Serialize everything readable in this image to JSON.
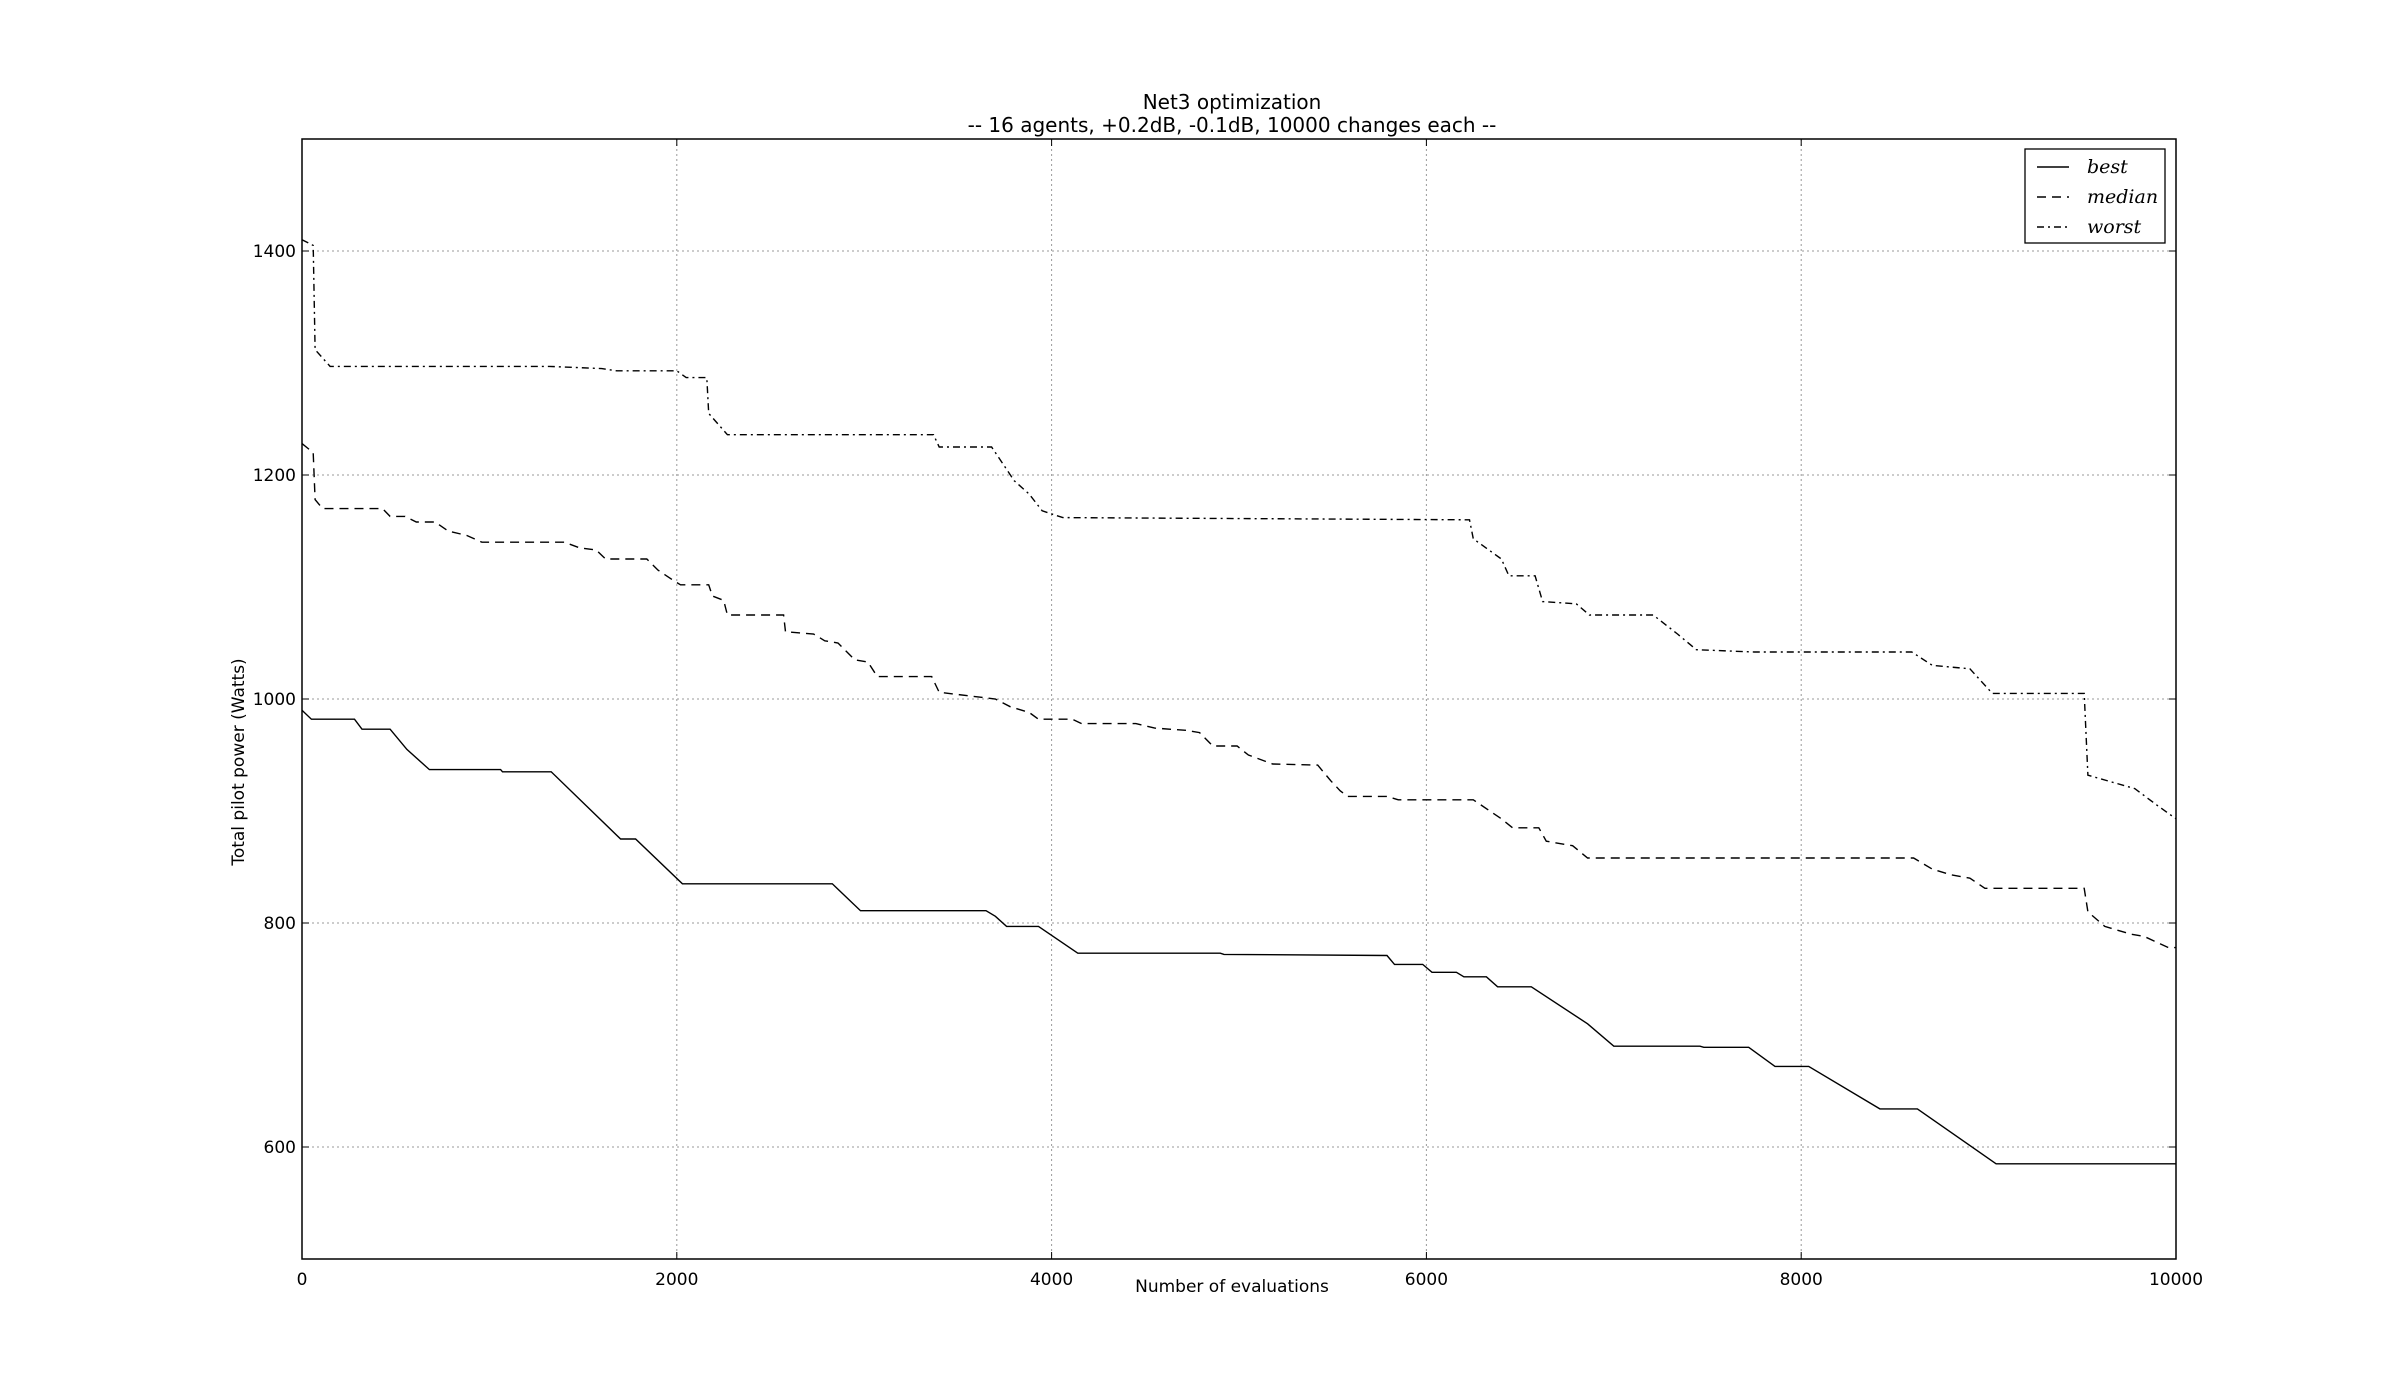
{
  "chart_data": {
    "type": "line",
    "title": "Net3 optimization",
    "subtitle": "-- 16 agents, +0.2dB, -0.1dB, 10000 changes each --",
    "xlabel": "Number of evaluations",
    "ylabel": "Total pilot power (Watts)",
    "xlim": [
      0,
      10000
    ],
    "ylim": [
      500,
      1500
    ],
    "xticks": [
      0,
      2000,
      4000,
      6000,
      8000,
      10000
    ],
    "yticks": [
      600,
      800,
      1000,
      1200,
      1400
    ],
    "grid": true,
    "legend_position": "top-right",
    "series": [
      {
        "name": "best",
        "style": "solid",
        "points": [
          [
            0,
            990
          ],
          [
            50,
            982
          ],
          [
            280,
            982
          ],
          [
            320,
            973
          ],
          [
            470,
            973
          ],
          [
            560,
            955
          ],
          [
            680,
            937
          ],
          [
            1060,
            937
          ],
          [
            1070,
            935
          ],
          [
            1330,
            935
          ],
          [
            1700,
            875
          ],
          [
            1780,
            875
          ],
          [
            2030,
            835
          ],
          [
            2830,
            835
          ],
          [
            2980,
            811
          ],
          [
            3650,
            811
          ],
          [
            3700,
            806
          ],
          [
            3760,
            797
          ],
          [
            3930,
            797
          ],
          [
            4140,
            773
          ],
          [
            4900,
            773
          ],
          [
            4920,
            772
          ],
          [
            5790,
            771
          ],
          [
            5830,
            763
          ],
          [
            5980,
            763
          ],
          [
            6030,
            756
          ],
          [
            6160,
            756
          ],
          [
            6200,
            752
          ],
          [
            6320,
            752
          ],
          [
            6380,
            743
          ],
          [
            6560,
            743
          ],
          [
            6860,
            710
          ],
          [
            7000,
            690
          ],
          [
            7460,
            690
          ],
          [
            7480,
            689
          ],
          [
            7720,
            689
          ],
          [
            7860,
            672
          ],
          [
            8040,
            672
          ],
          [
            8420,
            634
          ],
          [
            8620,
            634
          ],
          [
            9040,
            585
          ],
          [
            10000,
            585
          ]
        ]
      },
      {
        "name": "median",
        "style": "dashed",
        "points": [
          [
            0,
            1228
          ],
          [
            60,
            1220
          ],
          [
            70,
            1178
          ],
          [
            110,
            1170
          ],
          [
            430,
            1170
          ],
          [
            470,
            1163
          ],
          [
            550,
            1163
          ],
          [
            610,
            1158
          ],
          [
            710,
            1158
          ],
          [
            780,
            1150
          ],
          [
            880,
            1146
          ],
          [
            960,
            1140
          ],
          [
            1400,
            1140
          ],
          [
            1480,
            1135
          ],
          [
            1570,
            1133
          ],
          [
            1620,
            1125
          ],
          [
            1840,
            1125
          ],
          [
            1900,
            1115
          ],
          [
            1990,
            1105
          ],
          [
            2020,
            1102
          ],
          [
            2170,
            1102
          ],
          [
            2190,
            1092
          ],
          [
            2250,
            1088
          ],
          [
            2270,
            1075
          ],
          [
            2570,
            1075
          ],
          [
            2580,
            1060
          ],
          [
            2730,
            1058
          ],
          [
            2790,
            1052
          ],
          [
            2860,
            1050
          ],
          [
            2950,
            1035
          ],
          [
            3020,
            1033
          ],
          [
            3070,
            1020
          ],
          [
            3360,
            1020
          ],
          [
            3400,
            1006
          ],
          [
            3700,
            1000
          ],
          [
            3780,
            993
          ],
          [
            3880,
            988
          ],
          [
            3930,
            982
          ],
          [
            4110,
            982
          ],
          [
            4160,
            978
          ],
          [
            4450,
            978
          ],
          [
            4550,
            974
          ],
          [
            4720,
            972
          ],
          [
            4790,
            970
          ],
          [
            4860,
            958
          ],
          [
            4990,
            958
          ],
          [
            5050,
            950
          ],
          [
            5180,
            942
          ],
          [
            5420,
            941
          ],
          [
            5490,
            927
          ],
          [
            5540,
            918
          ],
          [
            5580,
            913
          ],
          [
            5790,
            913
          ],
          [
            5850,
            910
          ],
          [
            6250,
            910
          ],
          [
            6400,
            893
          ],
          [
            6460,
            885
          ],
          [
            6600,
            885
          ],
          [
            6640,
            873
          ],
          [
            6780,
            869
          ],
          [
            6860,
            858
          ],
          [
            8600,
            858
          ],
          [
            8700,
            848
          ],
          [
            8800,
            843
          ],
          [
            8900,
            840
          ],
          [
            8980,
            831
          ],
          [
            9510,
            831
          ],
          [
            9530,
            810
          ],
          [
            9620,
            797
          ],
          [
            9760,
            790
          ],
          [
            9830,
            788
          ],
          [
            9960,
            778
          ],
          [
            10000,
            778
          ]
        ]
      },
      {
        "name": "worst",
        "style": "dashdot",
        "points": [
          [
            0,
            1410
          ],
          [
            60,
            1405
          ],
          [
            70,
            1312
          ],
          [
            150,
            1297
          ],
          [
            1320,
            1297
          ],
          [
            1600,
            1295
          ],
          [
            1680,
            1293
          ],
          [
            2000,
            1293
          ],
          [
            2050,
            1287
          ],
          [
            2160,
            1287
          ],
          [
            2170,
            1255
          ],
          [
            2270,
            1236
          ],
          [
            3370,
            1236
          ],
          [
            3400,
            1225
          ],
          [
            3680,
            1225
          ],
          [
            3740,
            1210
          ],
          [
            3800,
            1195
          ],
          [
            3880,
            1183
          ],
          [
            3950,
            1168
          ],
          [
            4060,
            1162
          ],
          [
            6230,
            1160
          ],
          [
            6250,
            1143
          ],
          [
            6400,
            1125
          ],
          [
            6440,
            1110
          ],
          [
            6580,
            1110
          ],
          [
            6620,
            1087
          ],
          [
            6800,
            1085
          ],
          [
            6870,
            1075
          ],
          [
            7210,
            1075
          ],
          [
            7340,
            1058
          ],
          [
            7440,
            1044
          ],
          [
            7750,
            1042
          ],
          [
            8590,
            1042
          ],
          [
            8700,
            1030
          ],
          [
            8900,
            1027
          ],
          [
            9020,
            1005
          ],
          [
            9510,
            1005
          ],
          [
            9530,
            932
          ],
          [
            9780,
            920
          ],
          [
            9900,
            905
          ],
          [
            10000,
            893
          ]
        ]
      }
    ]
  }
}
